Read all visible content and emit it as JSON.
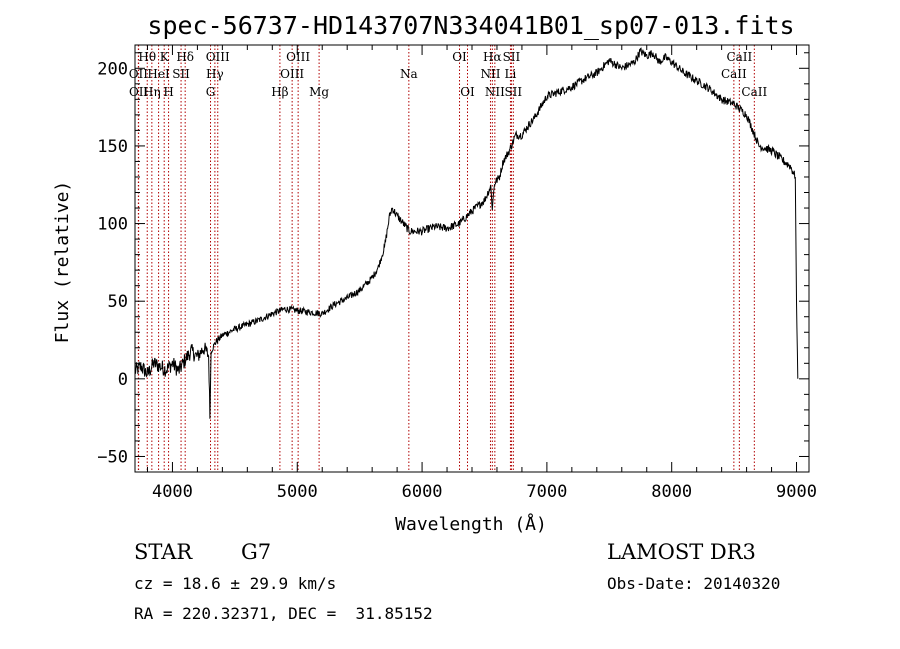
{
  "chart_data": {
    "type": "line",
    "title": "spec-56737-HD143707N334041B01_sp07-013.fits",
    "xlabel": "Wavelength (Å)",
    "ylabel": "Flux (relative)",
    "xlim": [
      3700,
      9100
    ],
    "ylim": [
      -60,
      215
    ],
    "xticks": [
      4000,
      5000,
      6000,
      7000,
      8000,
      9000
    ],
    "yticks": [
      -50,
      0,
      50,
      100,
      150,
      200
    ],
    "xtick_labels": [
      "4000",
      "5000",
      "6000",
      "7000",
      "8000",
      "9000"
    ],
    "ytick_labels": [
      "−50",
      "0",
      "50",
      "100",
      "150",
      "200"
    ],
    "series": [
      {
        "name": "flux",
        "x": [
          3700,
          3750,
          3800,
          3850,
          3900,
          3950,
          4000,
          4050,
          4100,
          4150,
          4200,
          4250,
          4290,
          4300,
          4310,
          4350,
          4400,
          4500,
          4600,
          4700,
          4800,
          4900,
          5000,
          5100,
          5200,
          5300,
          5400,
          5500,
          5600,
          5650,
          5700,
          5720,
          5740,
          5760,
          5800,
          5900,
          6000,
          6100,
          6200,
          6300,
          6400,
          6500,
          6550,
          6563,
          6580,
          6620,
          6650,
          6700,
          6750,
          6800,
          6850,
          6900,
          6950,
          7000,
          7100,
          7200,
          7300,
          7400,
          7500,
          7600,
          7700,
          7750,
          7800,
          7850,
          7900,
          7950,
          8000,
          8100,
          8200,
          8300,
          8400,
          8500,
          8600,
          8650,
          8700,
          8800,
          8900,
          8950,
          8990,
          9000,
          9010
        ],
        "y": [
          5,
          8,
          3,
          10,
          8,
          6,
          10,
          5,
          12,
          18,
          14,
          20,
          15,
          -25,
          18,
          24,
          28,
          32,
          35,
          38,
          42,
          45,
          44,
          43,
          42,
          48,
          52,
          57,
          65,
          72,
          85,
          95,
          105,
          110,
          105,
          95,
          95,
          98,
          97,
          100,
          108,
          115,
          124,
          110,
          126,
          130,
          140,
          147,
          157,
          157,
          163,
          168,
          175,
          182,
          185,
          188,
          193,
          197,
          205,
          200,
          204,
          211,
          208,
          210,
          204,
          207,
          204,
          197,
          192,
          187,
          180,
          177,
          170,
          160,
          150,
          147,
          140,
          137,
          130,
          50,
          0
        ]
      }
    ],
    "lines": [
      {
        "label": "Hθ",
        "x": 3798,
        "row": 1
      },
      {
        "label": "OII",
        "x": 3727,
        "row": 2
      },
      {
        "label": "OII",
        "x": 3729,
        "row": 3
      },
      {
        "label": "Hη",
        "x": 3835,
        "row": 3
      },
      {
        "label": "K",
        "x": 3934,
        "row": 1
      },
      {
        "label": "HeI",
        "x": 3889,
        "row": 2
      },
      {
        "label": "H",
        "x": 3969,
        "row": 3
      },
      {
        "label": "SII",
        "x": 4069,
        "row": 2
      },
      {
        "label": "Hδ",
        "x": 4102,
        "row": 1
      },
      {
        "label": "OIII",
        "x": 4363,
        "row": 1
      },
      {
        "label": "Hγ",
        "x": 4340,
        "row": 2
      },
      {
        "label": "G",
        "x": 4305,
        "row": 3
      },
      {
        "label": "OIII",
        "x": 5007,
        "row": 1
      },
      {
        "label": "OIII",
        "x": 4959,
        "row": 2
      },
      {
        "label": "Hβ",
        "x": 4861,
        "row": 3
      },
      {
        "label": "Mg",
        "x": 5175,
        "row": 3
      },
      {
        "label": "Na",
        "x": 5894,
        "row": 2
      },
      {
        "label": "OI",
        "x": 6300,
        "row": 1
      },
      {
        "label": "OI",
        "x": 6364,
        "row": 3
      },
      {
        "label": "Hα",
        "x": 6563,
        "row": 1
      },
      {
        "label": "SII",
        "x": 6716,
        "row": 1
      },
      {
        "label": "NII",
        "x": 6548,
        "row": 2
      },
      {
        "label": "Li",
        "x": 6708,
        "row": 2
      },
      {
        "label": "NII",
        "x": 6583,
        "row": 3
      },
      {
        "label": "SII",
        "x": 6731,
        "row": 3
      },
      {
        "label": "CaII",
        "x": 8542,
        "row": 1
      },
      {
        "label": "CaII",
        "x": 8498,
        "row": 2
      },
      {
        "label": "CaII",
        "x": 8662,
        "row": 3
      }
    ]
  },
  "info": {
    "object_class": "STAR",
    "subclass": "G7",
    "cz": "cz = 18.6 ± 29.9 km/s",
    "coords": "RA = 220.32371, DEC =  31.85152",
    "survey": "LAMOST DR3",
    "obs_date": "Obs-Date: 20140320"
  },
  "colors": {
    "line_marker": "#b00000",
    "spectrum": "#000000"
  }
}
